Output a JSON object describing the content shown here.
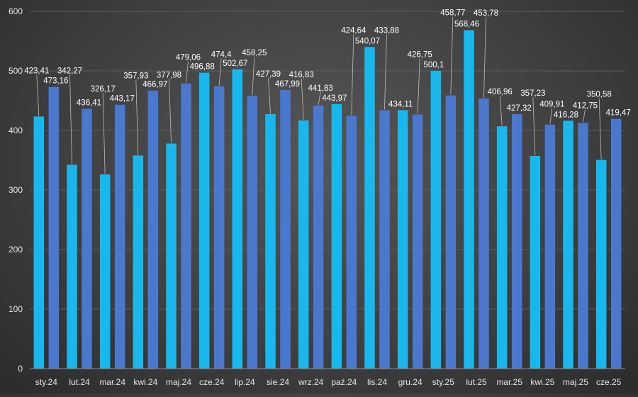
{
  "chart_data": {
    "type": "bar",
    "categories": [
      "sty.24",
      "lut.24",
      "mar.24",
      "kwi.24",
      "maj.24",
      "cze.24",
      "lip.24",
      "sie.24",
      "wrz.24",
      "paź.24",
      "lis.24",
      "gru.24",
      "sty.25",
      "lut.25",
      "mar.25",
      "kwi.25",
      "maj.25",
      "cze.25"
    ],
    "series": [
      {
        "color": "#18b8ee",
        "values": [
          423.41,
          342.27,
          326.17,
          357.93,
          377.98,
          496.88,
          502.67,
          427.39,
          416.83,
          443.97,
          540.07,
          434.11,
          500.1,
          568.46,
          406.96,
          357.23,
          416.28,
          350.58
        ],
        "labels": [
          "423,41",
          "342,27",
          "326,17",
          "357,93",
          "377,98",
          "496,88",
          "502,67",
          "427,39",
          "416,83",
          "443,97",
          "540,07",
          "434,11",
          "500,1",
          "568,46",
          "406,96",
          "357,23",
          "416,28",
          "350,58"
        ]
      },
      {
        "color": "#4a78cf",
        "values": [
          473.16,
          436.41,
          443.17,
          466.97,
          479.06,
          474.4,
          458.25,
          467.99,
          441.83,
          424.64,
          433.88,
          426.75,
          458.77,
          453.78,
          427.32,
          409.91,
          412.75,
          419.47
        ],
        "labels": [
          "473,16",
          "436,41",
          "443,17",
          "466,97",
          "479,06",
          "474,4",
          "458,25",
          "467,99",
          "441,83",
          "424,64",
          "433,88",
          "426,75",
          "458,77",
          "453,78",
          "427,32",
          "409,91",
          "412,75",
          "419,47"
        ]
      }
    ],
    "y_ticks": [
      "0",
      "100",
      "200",
      "300",
      "400",
      "500",
      "600"
    ],
    "ylim": [
      0,
      600
    ],
    "grid": true,
    "legend": "none"
  }
}
